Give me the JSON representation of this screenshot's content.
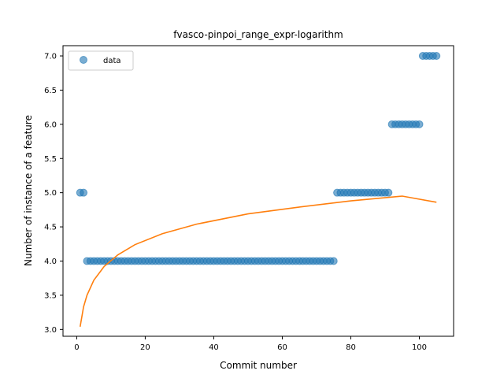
{
  "chart_data": {
    "type": "scatter",
    "title": "fvasco-pinpoi_range_expr-logarithm",
    "xlabel": "Commit number",
    "ylabel": "Number of instance of a feature",
    "xlim": [
      -4,
      110
    ],
    "ylim": [
      2.9,
      7.15
    ],
    "xticks": [
      0,
      20,
      40,
      60,
      80,
      100
    ],
    "yticks": [
      3.0,
      3.5,
      4.0,
      4.5,
      5.0,
      5.5,
      6.0,
      6.5,
      7.0
    ],
    "grid": false,
    "legend": {
      "position": "upper-left",
      "entries": [
        "data"
      ]
    },
    "colors": {
      "data": "#1f77b4",
      "fit": "#ff7f0e"
    },
    "series": [
      {
        "name": "data",
        "kind": "scatter",
        "segments": [
          {
            "x_start": 1,
            "x_end": 2,
            "y": 5
          },
          {
            "x_start": 3,
            "x_end": 75,
            "y": 4
          },
          {
            "x_start": 76,
            "x_end": 91,
            "y": 5
          },
          {
            "x_start": 92,
            "x_end": 100,
            "y": 6
          },
          {
            "x_start": 101,
            "x_end": 105,
            "y": 7
          }
        ]
      },
      {
        "kind": "line",
        "x": [
          1,
          2,
          3,
          5,
          8,
          12,
          17,
          25,
          35,
          50,
          65,
          80,
          95,
          105
        ],
        "y": [
          3.04,
          3.33,
          3.5,
          3.72,
          3.92,
          4.09,
          4.24,
          4.4,
          4.54,
          4.69,
          4.79,
          4.88,
          4.95,
          4.86
        ]
      }
    ]
  }
}
